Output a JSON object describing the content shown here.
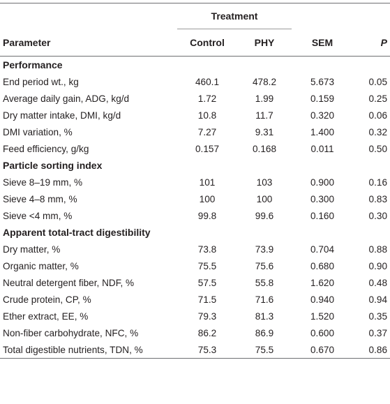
{
  "header": {
    "treatment_label": "Treatment",
    "columns": {
      "parameter": "Parameter",
      "control": "Control",
      "phy": "PHY",
      "sem": "SEM",
      "p": "P"
    }
  },
  "sections": [
    {
      "title": "Performance",
      "rows": [
        {
          "parameter": "End period wt., kg",
          "control": "460.1",
          "phy": "478.2",
          "sem": "5.673",
          "p": "0.05"
        },
        {
          "parameter": "Average daily gain, ADG, kg/d",
          "control": "1.72",
          "phy": "1.99",
          "sem": "0.159",
          "p": "0.25"
        },
        {
          "parameter": "Dry matter intake, DMI, kg/d",
          "control": "10.8",
          "phy": "11.7",
          "sem": "0.320",
          "p": "0.06"
        },
        {
          "parameter": "DMI variation, %",
          "control": "7.27",
          "phy": "9.31",
          "sem": "1.400",
          "p": "0.32"
        },
        {
          "parameter": "Feed efficiency, g/kg",
          "control": "0.157",
          "phy": "0.168",
          "sem": "0.011",
          "p": "0.50"
        }
      ]
    },
    {
      "title": "Particle sorting index",
      "rows": [
        {
          "parameter": "Sieve 8–19 mm, %",
          "control": "101",
          "phy": "103",
          "sem": "0.900",
          "p": "0.16"
        },
        {
          "parameter": "Sieve 4–8 mm, %",
          "control": "100",
          "phy": "100",
          "sem": "0.300",
          "p": "0.83"
        },
        {
          "parameter": "Sieve <4 mm, %",
          "control": "99.8",
          "phy": "99.6",
          "sem": "0.160",
          "p": "0.30"
        }
      ]
    },
    {
      "title": "Apparent total-tract digestibility",
      "rows": [
        {
          "parameter": "Dry matter, %",
          "control": "73.8",
          "phy": "73.9",
          "sem": "0.704",
          "p": "0.88"
        },
        {
          "parameter": "Organic matter, %",
          "control": "75.5",
          "phy": "75.6",
          "sem": "0.680",
          "p": "0.90"
        },
        {
          "parameter": "Neutral detergent fiber, NDF, %",
          "control": "57.5",
          "phy": "55.8",
          "sem": "1.620",
          "p": "0.48"
        },
        {
          "parameter": "Crude protein, CP, %",
          "control": "71.5",
          "phy": "71.6",
          "sem": "0.940",
          "p": "0.94"
        },
        {
          "parameter": "Ether extract, EE, %",
          "control": "79.3",
          "phy": "81.3",
          "sem": "1.520",
          "p": "0.35"
        },
        {
          "parameter": "Non-fiber carbohydrate, NFC, %",
          "control": "86.2",
          "phy": "86.9",
          "sem": "0.600",
          "p": "0.37"
        },
        {
          "parameter": "Total digestible nutrients, TDN, %",
          "control": "75.3",
          "phy": "75.5",
          "sem": "0.670",
          "p": "0.86"
        }
      ]
    }
  ]
}
